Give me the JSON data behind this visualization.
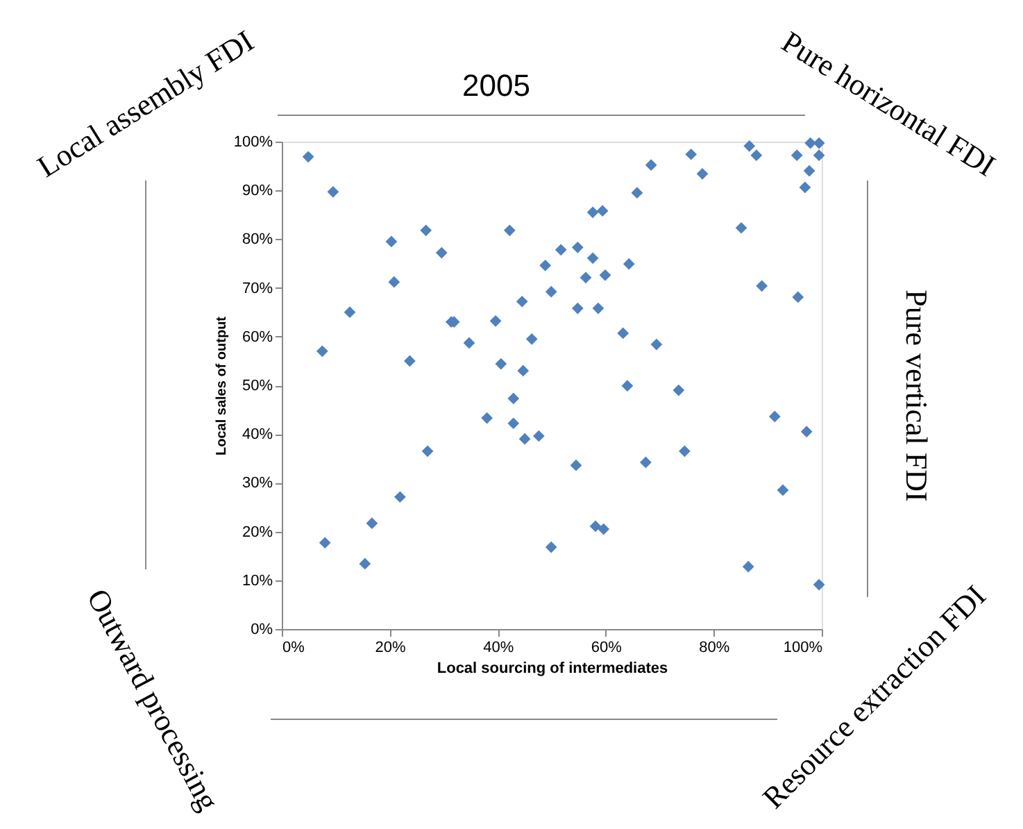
{
  "chart_data": {
    "type": "scatter",
    "title": "2005",
    "xlabel": "Local sourcing of intermediates",
    "ylabel": "Local sales of output",
    "annotations": [
      "Local assembly FDI",
      "Pure horizontal FDI",
      "Pure vertical FDI",
      "Outward processing",
      "Resource extraction FDI"
    ],
    "marker": "diamond",
    "grid": false,
    "xlim": [
      0,
      100
    ],
    "ylim": [
      0,
      100
    ],
    "xticks": [
      {
        "value": 0,
        "label": "0%"
      },
      {
        "value": 20,
        "label": "20%"
      },
      {
        "value": 40,
        "label": "40%"
      },
      {
        "value": 60,
        "label": "60%"
      },
      {
        "value": 80,
        "label": "80%"
      },
      {
        "value": 100,
        "label": "100%"
      }
    ],
    "yticks": [
      {
        "value": 0,
        "label": "0%"
      },
      {
        "value": 10,
        "label": "10%"
      },
      {
        "value": 20,
        "label": "20%"
      },
      {
        "value": 30,
        "label": "30%"
      },
      {
        "value": 40,
        "label": "40%"
      },
      {
        "value": 50,
        "label": "50%"
      },
      {
        "value": 60,
        "label": "60%"
      },
      {
        "value": 70,
        "label": "70%"
      },
      {
        "value": 80,
        "label": "80%"
      },
      {
        "value": 90,
        "label": "90%"
      },
      {
        "value": 100,
        "label": "100%"
      }
    ],
    "series": [
      {
        "color": "#4f81bd",
        "x": [
          4.9,
          9.5,
          20.3,
          26.7,
          29.6,
          20.8,
          42.2,
          48.8,
          51.7,
          12.6,
          31.4,
          31.9,
          39.6,
          44.5,
          49.9,
          7.5,
          23.7,
          34.7,
          40.6,
          44.7,
          46.3,
          68.4,
          75.8,
          77.9,
          86.6,
          87.9,
          95.4,
          97.9,
          99.5,
          99.5,
          97.7,
          96.9,
          65.8,
          57.6,
          59.4,
          85.1,
          54.8,
          57.6,
          64.3,
          56.3,
          59.9,
          54.8,
          58.6,
          63.2,
          69.4,
          88.9,
          95.6,
          42.9,
          38.0,
          42.9,
          45.0,
          47.6,
          27.0,
          21.9,
          16.7,
          8.0,
          15.4,
          49.9,
          64.0,
          73.5,
          91.3,
          97.2,
          54.5,
          67.4,
          74.6,
          92.8,
          58.1,
          59.6,
          86.4,
          99.5
        ],
        "values": [
          96.9,
          89.7,
          79.5,
          81.8,
          77.2,
          71.2,
          81.8,
          74.6,
          77.8,
          65.0,
          63.0,
          63.0,
          63.2,
          67.2,
          69.2,
          57.0,
          55.0,
          58.7,
          54.4,
          53.0,
          59.5,
          95.2,
          97.4,
          93.4,
          99.1,
          97.2,
          97.2,
          99.7,
          99.7,
          97.2,
          94.0,
          90.6,
          89.5,
          85.5,
          85.8,
          82.3,
          78.3,
          76.1,
          74.9,
          72.1,
          72.6,
          65.8,
          65.8,
          60.7,
          58.4,
          70.4,
          68.1,
          47.3,
          43.3,
          42.2,
          39.0,
          39.6,
          36.5,
          27.1,
          21.7,
          17.7,
          13.4,
          16.8,
          49.9,
          49.0,
          43.6,
          40.5,
          33.6,
          34.2,
          36.5,
          28.5,
          21.1,
          20.5,
          12.8,
          9.1
        ]
      }
    ]
  }
}
